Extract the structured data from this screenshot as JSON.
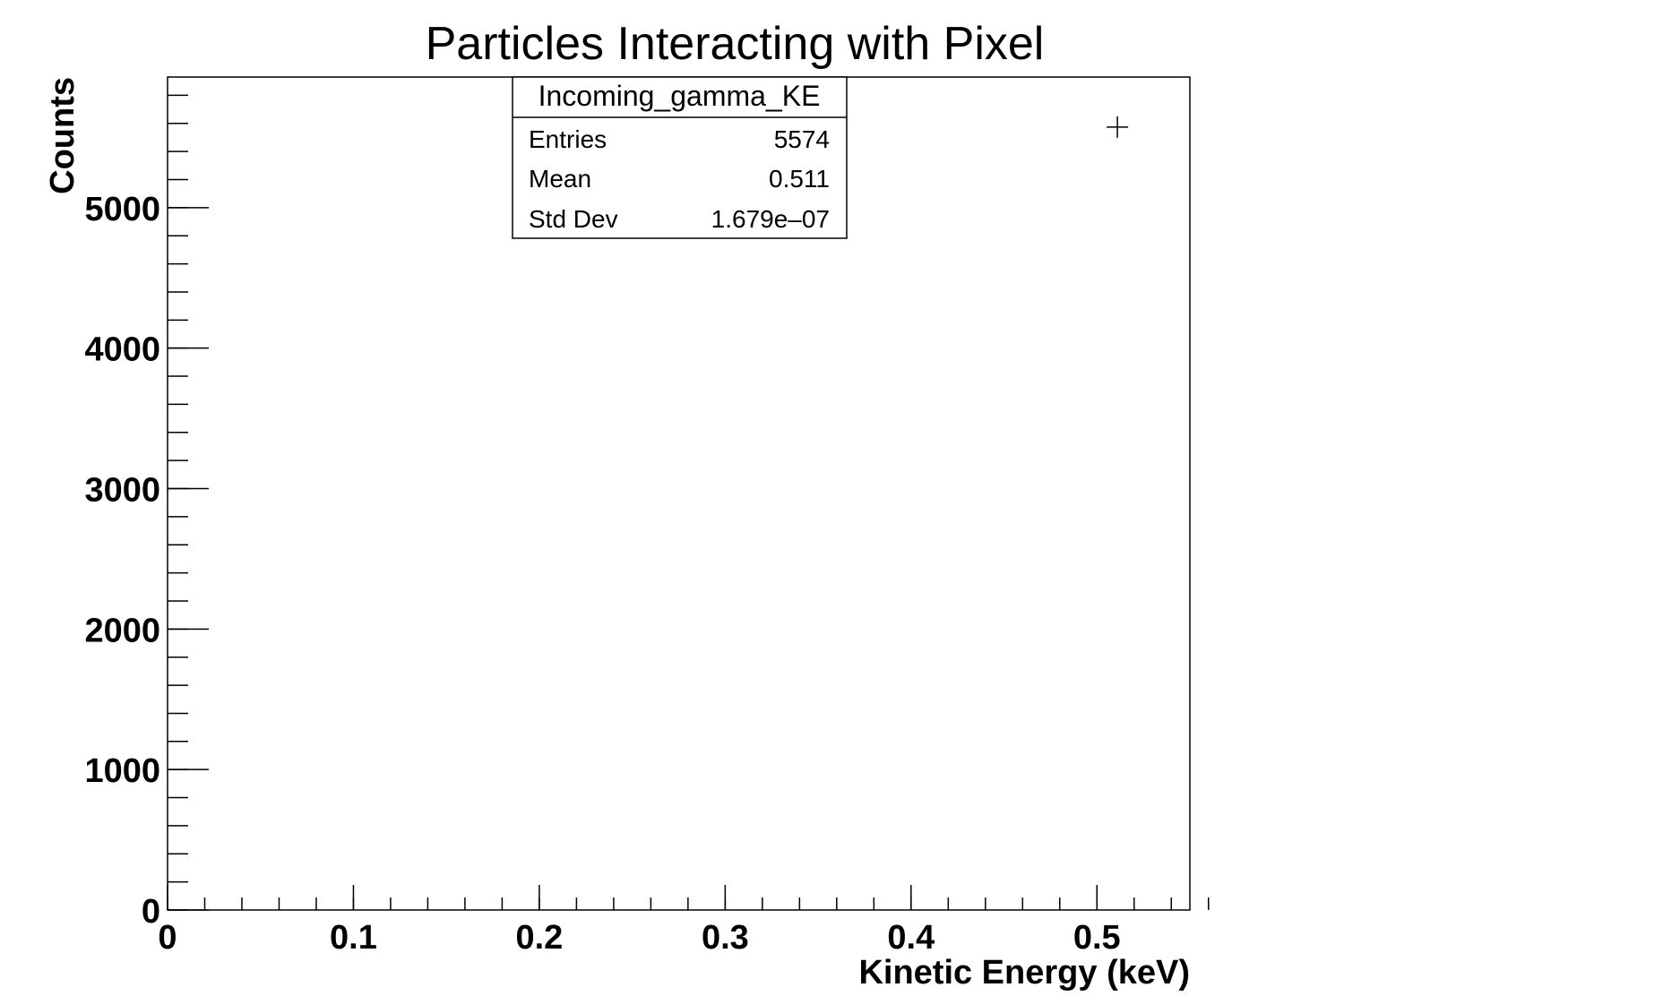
{
  "chart_data": {
    "type": "scatter",
    "title": "Particles Interacting with Pixel",
    "xlabel": "Kinetic Energy (keV)",
    "ylabel": "Counts",
    "xlim": [
      0,
      0.55
    ],
    "ylim": [
      0,
      5930
    ],
    "x_ticks": [
      {
        "value": 0,
        "label": "0"
      },
      {
        "value": 0.1,
        "label": "0.1"
      },
      {
        "value": 0.2,
        "label": "0.2"
      },
      {
        "value": 0.3,
        "label": "0.3"
      },
      {
        "value": 0.4,
        "label": "0.4"
      },
      {
        "value": 0.5,
        "label": "0.5"
      }
    ],
    "y_ticks": [
      {
        "value": 0,
        "label": "0"
      },
      {
        "value": 1000,
        "label": "1000"
      },
      {
        "value": 2000,
        "label": "2000"
      },
      {
        "value": 3000,
        "label": "3000"
      },
      {
        "value": 4000,
        "label": "4000"
      },
      {
        "value": 5000,
        "label": "5000"
      }
    ],
    "x_minor_step": 0.02,
    "y_minor_step": 200,
    "grid": false,
    "points": [
      {
        "x": 0.511,
        "y": 5574
      }
    ],
    "stats_box": {
      "name": "Incoming_gamma_KE",
      "placement": "top-center",
      "rows": [
        {
          "label": "Entries",
          "value": "5574"
        },
        {
          "label": "Mean",
          "value": "0.511"
        },
        {
          "label": "Std Dev",
          "value": "1.679e–07"
        }
      ]
    }
  }
}
